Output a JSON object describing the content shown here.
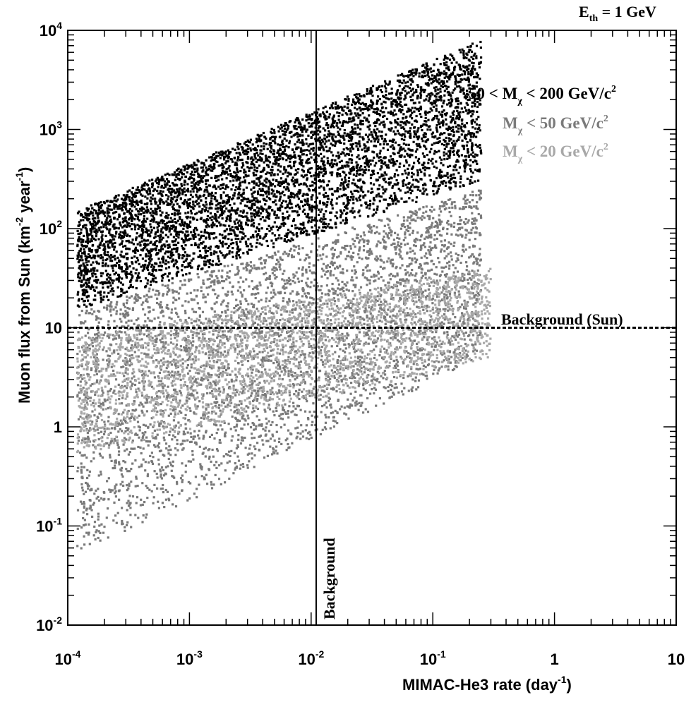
{
  "chart_data": {
    "type": "scatter",
    "corner_label": {
      "base": "E",
      "sub": "th",
      "rest": " = 1 GeV"
    },
    "xlabel": {
      "main": "MIMAC-He3  rate  (day",
      "sup": "-1",
      "close": ")"
    },
    "ylabel": {
      "main": "Muon  flux  from  Sun  (km",
      "sup1": "-2",
      "mid": " year",
      "sup2": "-1",
      "close": ")"
    },
    "x_scale": "log",
    "y_scale": "log",
    "xlim": [
      0.0001,
      10
    ],
    "ylim": [
      0.01,
      10000
    ],
    "x_ticks": [
      {
        "base": "10",
        "exp": "-4",
        "value": 0.0001
      },
      {
        "base": "10",
        "exp": "-3",
        "value": 0.001
      },
      {
        "base": "10",
        "exp": "-2",
        "value": 0.01
      },
      {
        "base": "10",
        "exp": "-1",
        "value": 0.1
      },
      {
        "base": "1",
        "exp": "",
        "value": 1
      },
      {
        "base": "10",
        "exp": "",
        "value": 10
      }
    ],
    "y_ticks": [
      {
        "base": "10",
        "exp": "-2",
        "value": 0.01
      },
      {
        "base": "10",
        "exp": "-1",
        "value": 0.1
      },
      {
        "base": "1",
        "exp": "",
        "value": 1
      },
      {
        "base": "10",
        "exp": "",
        "value": 10
      },
      {
        "base": "10",
        "exp": "2",
        "value": 100
      },
      {
        "base": "10",
        "exp": "3",
        "value": 1000
      },
      {
        "base": "10",
        "exp": "4",
        "value": 10000
      }
    ],
    "legend_position": "top-right",
    "series": [
      {
        "name_parts": [
          "50 < M",
          "χ",
          " < 200 GeV/c",
          "2"
        ],
        "color": "#000000",
        "region": {
          "x_range": [
            0.00012,
            0.25
          ],
          "y_floor_at_xmin": 15,
          "y_floor_at_xmax": 300,
          "y_ceil_at_xmin": 150,
          "y_ceil_at_xmax": 8000
        }
      },
      {
        "name_parts": [
          "M",
          "χ",
          " < 50 GeV/c",
          "2"
        ],
        "color": "#7a7a7a",
        "region": {
          "x_range": [
            0.00012,
            0.25
          ],
          "y_floor_at_xmin": 0.05,
          "y_floor_at_xmax": 5,
          "y_ceil_at_xmin": 15,
          "y_ceil_at_xmax": 250
        }
      },
      {
        "name_parts": [
          "M",
          "χ",
          " < 20 GeV/c",
          "2"
        ],
        "color": "#a8a8a8",
        "region": {
          "x_range": [
            0.00012,
            0.3
          ],
          "y_floor_at_xmin": 0.5,
          "y_floor_at_xmax": 5,
          "y_ceil_at_xmin": 8,
          "y_ceil_at_xmax": 40
        }
      }
    ],
    "reference_lines": [
      {
        "orientation": "horizontal",
        "value": 10,
        "style": "dashed",
        "label": "Background (Sun)"
      },
      {
        "orientation": "vertical",
        "value": 0.011,
        "style": "solid",
        "label": "Background"
      }
    ]
  }
}
